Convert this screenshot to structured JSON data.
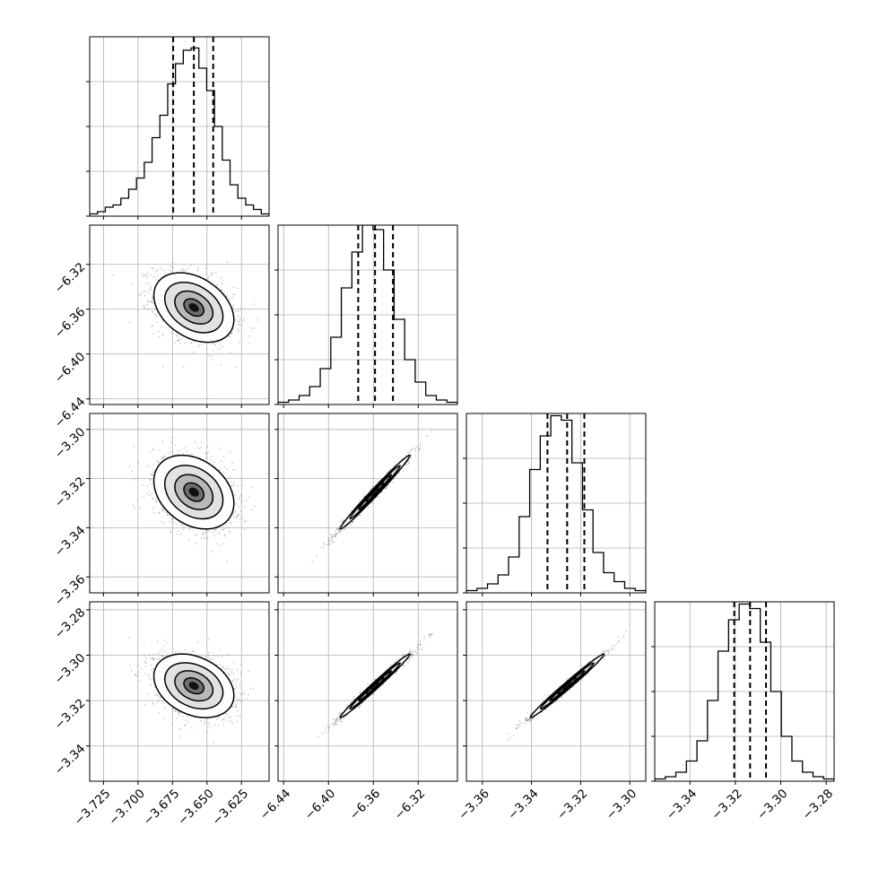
{
  "chart_data": {
    "type": "corner",
    "title": "",
    "parameters": [
      {
        "xlim": [
          -3.735,
          -3.605
        ],
        "ticks": [
          -3.725,
          -3.7,
          -3.675,
          -3.65,
          -3.625
        ],
        "tick_labels": [
          "−3.725",
          "−3.700",
          "−3.675",
          "−3.650",
          "−3.625"
        ],
        "quantiles": [
          -3.6745,
          -3.6595,
          -3.6455
        ],
        "hist_counts": [
          1,
          2,
          4,
          5,
          8,
          12,
          17,
          24,
          35,
          45,
          59,
          68,
          74,
          75,
          66,
          56,
          40,
          25,
          14,
          8,
          5,
          3,
          1
        ]
      },
      {
        "xlim": [
          -6.445,
          -6.285
        ],
        "ticks": [
          -6.44,
          -6.4,
          -6.36,
          -6.32
        ],
        "tick_labels": [
          "−6.44",
          "−6.40",
          "−6.36",
          "−6.32"
        ],
        "quantiles": [
          -6.3735,
          -6.3585,
          -6.3425
        ],
        "hist_counts": [
          1,
          2,
          4,
          8,
          16,
          30,
          52,
          68,
          80,
          78,
          60,
          38,
          20,
          10,
          4,
          2,
          1
        ]
      },
      {
        "xlim": [
          -3.3665,
          -3.2935
        ],
        "ticks": [
          -3.36,
          -3.34,
          -3.32,
          -3.3
        ],
        "tick_labels": [
          "−3.36",
          "−3.34",
          "−3.32",
          "−3.30"
        ],
        "quantiles": [
          -3.3335,
          -3.3255,
          -3.3185
        ],
        "hist_counts": [
          1,
          2,
          4,
          8,
          16,
          34,
          55,
          70,
          79,
          77,
          58,
          37,
          18,
          9,
          5,
          2,
          1
        ]
      },
      {
        "xlim": [
          -3.3555,
          -3.2765
        ],
        "ticks": [
          -3.34,
          -3.32,
          -3.3,
          -3.28
        ],
        "tick_labels": [
          "−3.34",
          "−3.32",
          "−3.30",
          "−3.28"
        ],
        "quantiles": [
          -3.3205,
          -3.3135,
          -3.3065
        ],
        "hist_counts": [
          1,
          2,
          4,
          9,
          18,
          36,
          58,
          72,
          79,
          77,
          62,
          40,
          20,
          9,
          4,
          2,
          1
        ]
      }
    ],
    "histogram_ylim": [
      0,
      80
    ],
    "histogram_yticks": [
      0,
      20,
      40,
      60
    ],
    "pairs": [
      {
        "x_param": 0,
        "y_param": 1,
        "correlation": -0.35
      },
      {
        "x_param": 0,
        "y_param": 2,
        "correlation": -0.3
      },
      {
        "x_param": 1,
        "y_param": 2,
        "correlation": 0.99
      },
      {
        "x_param": 0,
        "y_param": 3,
        "correlation": -0.3
      },
      {
        "x_param": 1,
        "y_param": 3,
        "correlation": 0.99
      },
      {
        "x_param": 2,
        "y_param": 3,
        "correlation": 0.99
      }
    ],
    "grid": true,
    "legend": "none",
    "colors": {
      "line": "#000000",
      "grid": "#b0b0b0",
      "samples": "#555555",
      "background": "#ffffff"
    }
  }
}
